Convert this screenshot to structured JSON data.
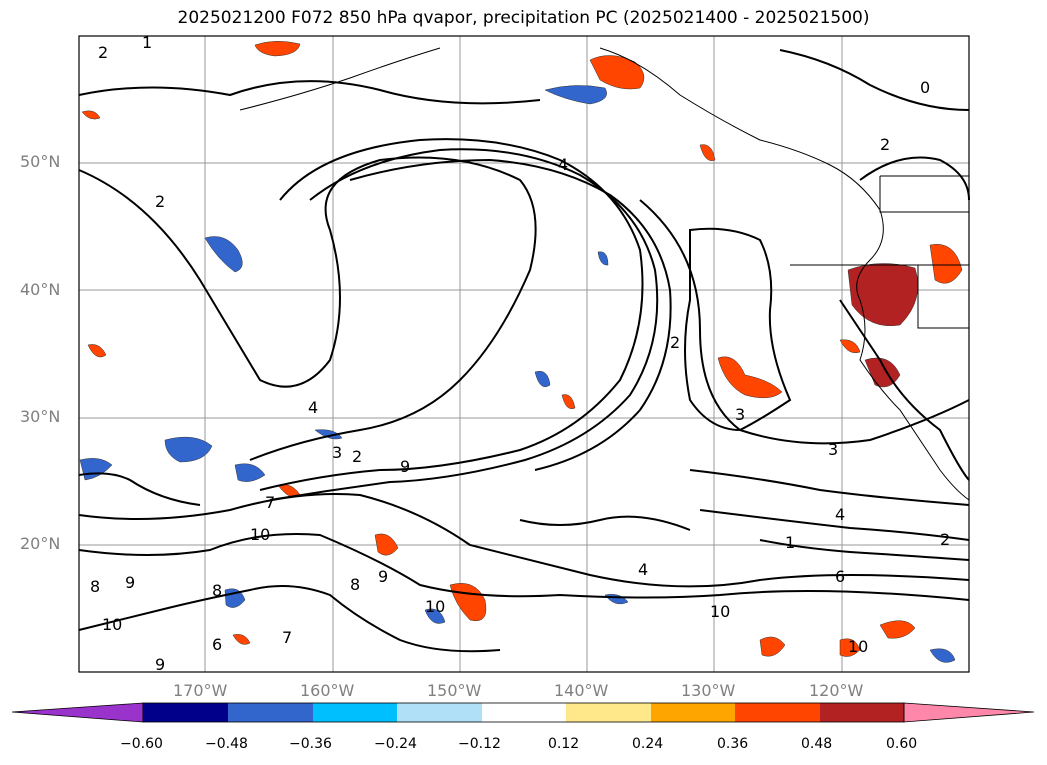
{
  "title": "2025021200 F072 850 hPa qvapor, precipitation PC (2025021400 - 2025021500)",
  "lat_labels": [
    "50°N",
    "40°N",
    "30°N",
    "20°N"
  ],
  "lon_labels": [
    "170°W",
    "160°W",
    "150°W",
    "140°W",
    "130°W",
    "120°W"
  ],
  "contour_labels": [
    "2",
    "1",
    "0",
    "4",
    "2",
    "2",
    "2",
    "1",
    "3",
    "4",
    "3",
    "2",
    "10",
    "9",
    "3",
    "2",
    "7",
    "4",
    "10",
    "8",
    "9",
    "10",
    "8",
    "9",
    "6",
    "7",
    "9",
    "8",
    "4",
    "6",
    "10",
    "10"
  ],
  "colorbar": {
    "ticks": [
      "−0.60",
      "−0.48",
      "−0.36",
      "−0.24",
      "−0.12",
      "0.12",
      "0.24",
      "0.36",
      "0.48",
      "0.60"
    ],
    "colors": [
      "#9933cc",
      "#00008b",
      "#3366cc",
      "#00bfff",
      "#b0e0f8",
      "#ffffff",
      "#ffe88a",
      "#ffa500",
      "#ff4500",
      "#b22222",
      "#ff88aa"
    ]
  },
  "accent": {
    "negative_fill": "#3366cc",
    "positive_fill": "#ff4500",
    "contour": "#000000",
    "grid": "#999999"
  }
}
